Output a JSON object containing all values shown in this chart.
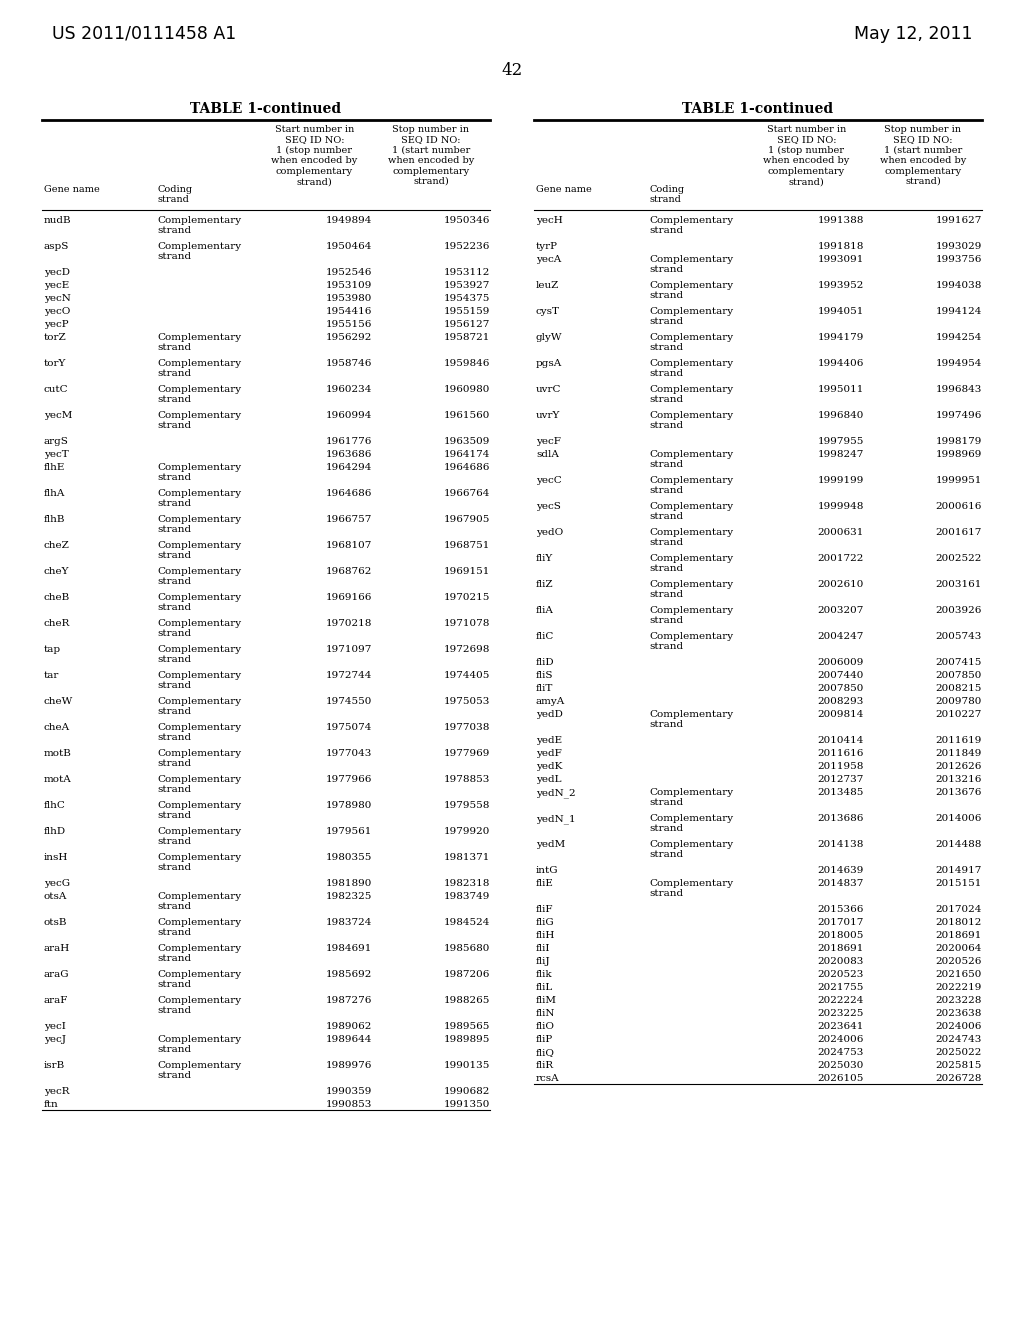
{
  "patent_number": "US 2011/0111458 A1",
  "date": "May 12, 2011",
  "page_number": "42",
  "table_title": "TABLE 1-continued",
  "left_table": [
    [
      "nudB",
      "Complementary\nstrand",
      "1949894",
      "1950346"
    ],
    [
      "aspS",
      "Complementary\nstrand",
      "1950464",
      "1952236"
    ],
    [
      "yecD",
      "",
      "1952546",
      "1953112"
    ],
    [
      "yecE",
      "",
      "1953109",
      "1953927"
    ],
    [
      "yecN",
      "",
      "1953980",
      "1954375"
    ],
    [
      "yecO",
      "",
      "1954416",
      "1955159"
    ],
    [
      "yecP",
      "",
      "1955156",
      "1956127"
    ],
    [
      "torZ",
      "Complementary\nstrand",
      "1956292",
      "1958721"
    ],
    [
      "torY",
      "Complementary\nstrand",
      "1958746",
      "1959846"
    ],
    [
      "cutC",
      "Complementary\nstrand",
      "1960234",
      "1960980"
    ],
    [
      "yecM",
      "Complementary\nstrand",
      "1960994",
      "1961560"
    ],
    [
      "argS",
      "",
      "1961776",
      "1963509"
    ],
    [
      "yecT",
      "",
      "1963686",
      "1964174"
    ],
    [
      "flhE",
      "Complementary\nstrand",
      "1964294",
      "1964686"
    ],
    [
      "flhA",
      "Complementary\nstrand",
      "1964686",
      "1966764"
    ],
    [
      "flhB",
      "Complementary\nstrand",
      "1966757",
      "1967905"
    ],
    [
      "cheZ",
      "Complementary\nstrand",
      "1968107",
      "1968751"
    ],
    [
      "cheY",
      "Complementary\nstrand",
      "1968762",
      "1969151"
    ],
    [
      "cheB",
      "Complementary\nstrand",
      "1969166",
      "1970215"
    ],
    [
      "cheR",
      "Complementary\nstrand",
      "1970218",
      "1971078"
    ],
    [
      "tap",
      "Complementary\nstrand",
      "1971097",
      "1972698"
    ],
    [
      "tar",
      "Complementary\nstrand",
      "1972744",
      "1974405"
    ],
    [
      "cheW",
      "Complementary\nstrand",
      "1974550",
      "1975053"
    ],
    [
      "cheA",
      "Complementary\nstrand",
      "1975074",
      "1977038"
    ],
    [
      "motB",
      "Complementary\nstrand",
      "1977043",
      "1977969"
    ],
    [
      "motA",
      "Complementary\nstrand",
      "1977966",
      "1978853"
    ],
    [
      "flhC",
      "Complementary\nstrand",
      "1978980",
      "1979558"
    ],
    [
      "flhD",
      "Complementary\nstrand",
      "1979561",
      "1979920"
    ],
    [
      "insH",
      "Complementary\nstrand",
      "1980355",
      "1981371"
    ],
    [
      "yecG",
      "",
      "1981890",
      "1982318"
    ],
    [
      "otsA",
      "Complementary\nstrand",
      "1982325",
      "1983749"
    ],
    [
      "otsB",
      "Complementary\nstrand",
      "1983724",
      "1984524"
    ],
    [
      "araH",
      "Complementary\nstrand",
      "1984691",
      "1985680"
    ],
    [
      "araG",
      "Complementary\nstrand",
      "1985692",
      "1987206"
    ],
    [
      "araF",
      "Complementary\nstrand",
      "1987276",
      "1988265"
    ],
    [
      "yecI",
      "",
      "1989062",
      "1989565"
    ],
    [
      "yecJ",
      "Complementary\nstrand",
      "1989644",
      "1989895"
    ],
    [
      "isrB",
      "Complementary\nstrand",
      "1989976",
      "1990135"
    ],
    [
      "yecR",
      "",
      "1990359",
      "1990682"
    ],
    [
      "ftn",
      "",
      "1990853",
      "1991350"
    ]
  ],
  "right_table": [
    [
      "yecH",
      "Complementary\nstrand",
      "1991388",
      "1991627"
    ],
    [
      "tyrP",
      "",
      "1991818",
      "1993029"
    ],
    [
      "yecA",
      "Complementary\nstrand",
      "1993091",
      "1993756"
    ],
    [
      "leuZ",
      "Complementary\nstrand",
      "1993952",
      "1994038"
    ],
    [
      "cysT",
      "Complementary\nstrand",
      "1994051",
      "1994124"
    ],
    [
      "glyW",
      "Complementary\nstrand",
      "1994179",
      "1994254"
    ],
    [
      "pgsA",
      "Complementary\nstrand",
      "1994406",
      "1994954"
    ],
    [
      "uvrC",
      "Complementary\nstrand",
      "1995011",
      "1996843"
    ],
    [
      "uvrY",
      "Complementary\nstrand",
      "1996840",
      "1997496"
    ],
    [
      "yecF",
      "",
      "1997955",
      "1998179"
    ],
    [
      "sdlA",
      "Complementary\nstrand",
      "1998247",
      "1998969"
    ],
    [
      "yecC",
      "Complementary\nstrand",
      "1999199",
      "1999951"
    ],
    [
      "yecS",
      "Complementary\nstrand",
      "1999948",
      "2000616"
    ],
    [
      "yedO",
      "Complementary\nstrand",
      "2000631",
      "2001617"
    ],
    [
      "fliY",
      "Complementary\nstrand",
      "2001722",
      "2002522"
    ],
    [
      "fliZ",
      "Complementary\nstrand",
      "2002610",
      "2003161"
    ],
    [
      "fliA",
      "Complementary\nstrand",
      "2003207",
      "2003926"
    ],
    [
      "fliC",
      "Complementary\nstrand",
      "2004247",
      "2005743"
    ],
    [
      "fliD",
      "",
      "2006009",
      "2007415"
    ],
    [
      "fliS",
      "",
      "2007440",
      "2007850"
    ],
    [
      "fliT",
      "",
      "2007850",
      "2008215"
    ],
    [
      "amyA",
      "",
      "2008293",
      "2009780"
    ],
    [
      "yedD",
      "Complementary\nstrand",
      "2009814",
      "2010227"
    ],
    [
      "yedE",
      "",
      "2010414",
      "2011619"
    ],
    [
      "yedF",
      "",
      "2011616",
      "2011849"
    ],
    [
      "yedK",
      "",
      "2011958",
      "2012626"
    ],
    [
      "yedL",
      "",
      "2012737",
      "2013216"
    ],
    [
      "yedN_2",
      "Complementary\nstrand",
      "2013485",
      "2013676"
    ],
    [
      "yedN_1",
      "Complementary\nstrand",
      "2013686",
      "2014006"
    ],
    [
      "yedM",
      "Complementary\nstrand",
      "2014138",
      "2014488"
    ],
    [
      "intG",
      "",
      "2014639",
      "2014917"
    ],
    [
      "fliE",
      "Complementary\nstrand",
      "2014837",
      "2015151"
    ],
    [
      "fliF",
      "",
      "2015366",
      "2017024"
    ],
    [
      "fliG",
      "",
      "2017017",
      "2018012"
    ],
    [
      "fliH",
      "",
      "2018005",
      "2018691"
    ],
    [
      "fliI",
      "",
      "2018691",
      "2020064"
    ],
    [
      "fliJ",
      "",
      "2020083",
      "2020526"
    ],
    [
      "flik",
      "",
      "2020523",
      "2021650"
    ],
    [
      "fliL",
      "",
      "2021755",
      "2022219"
    ],
    [
      "fliM",
      "",
      "2022224",
      "2023228"
    ],
    [
      "fliN",
      "",
      "2023225",
      "2023638"
    ],
    [
      "fliO",
      "",
      "2023641",
      "2024006"
    ],
    [
      "fliP",
      "",
      "2024006",
      "2024743"
    ],
    [
      "fliQ",
      "",
      "2024753",
      "2025022"
    ],
    [
      "fliR",
      "",
      "2025030",
      "2025815"
    ],
    [
      "rcsA",
      "",
      "2026105",
      "2026728"
    ]
  ]
}
